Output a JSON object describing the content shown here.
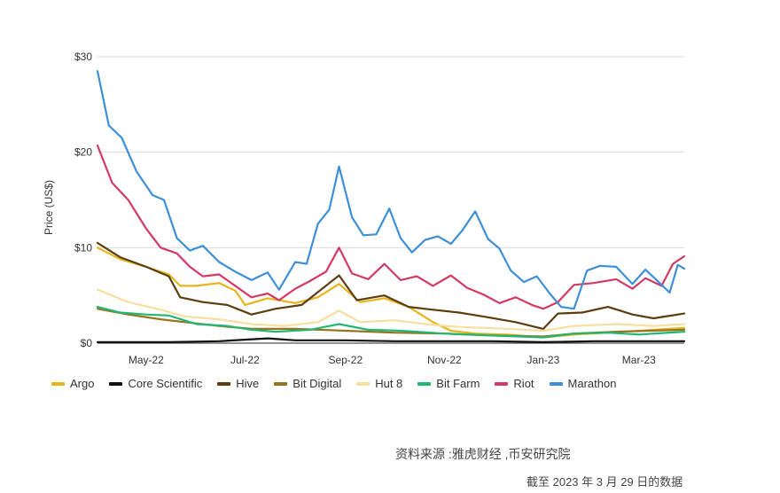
{
  "chart_data": {
    "type": "line",
    "title": "",
    "ylabel": "Price (US$)",
    "ylim": [
      0,
      30
    ],
    "yticks": [
      0,
      10,
      20,
      30
    ],
    "ytick_labels": [
      "$0",
      "$10",
      "$20",
      "$30"
    ],
    "xlim": [
      "2022-04-01",
      "2023-03-29"
    ],
    "xtick_labels": [
      "May-22",
      "Jul-22",
      "Sep-22",
      "Nov-22",
      "Jan-23",
      "Mar-23"
    ],
    "xtick_dates": [
      "2022-05-01",
      "2022-07-01",
      "2022-09-01",
      "2022-11-01",
      "2023-01-01",
      "2023-03-01"
    ],
    "grid": "horizontal",
    "legend_position": "bottom",
    "series": [
      {
        "name": "Argo",
        "color": "#e8b41c",
        "points": [
          [
            "2022-04-01",
            10.0
          ],
          [
            "2022-04-15",
            8.8
          ],
          [
            "2022-05-01",
            8.0
          ],
          [
            "2022-05-15",
            7.2
          ],
          [
            "2022-05-22",
            6.0
          ],
          [
            "2022-06-01",
            6.0
          ],
          [
            "2022-06-15",
            6.3
          ],
          [
            "2022-06-25",
            5.5
          ],
          [
            "2022-07-01",
            4.0
          ],
          [
            "2022-07-15",
            4.7
          ],
          [
            "2022-08-01",
            4.2
          ],
          [
            "2022-08-15",
            4.8
          ],
          [
            "2022-08-28",
            6.2
          ],
          [
            "2022-09-10",
            4.3
          ],
          [
            "2022-09-25",
            4.7
          ],
          [
            "2022-10-10",
            3.8
          ],
          [
            "2022-10-25",
            2.2
          ],
          [
            "2022-11-05",
            1.3
          ],
          [
            "2022-11-20",
            1.0
          ],
          [
            "2022-12-10",
            0.9
          ],
          [
            "2023-01-01",
            0.6
          ],
          [
            "2023-01-20",
            0.9
          ],
          [
            "2023-02-10",
            1.1
          ],
          [
            "2023-03-01",
            1.3
          ],
          [
            "2023-03-29",
            1.6
          ]
        ]
      },
      {
        "name": "Core Scientific",
        "color": "#111111",
        "points": [
          [
            "2022-04-01",
            0.1
          ],
          [
            "2022-05-15",
            0.1
          ],
          [
            "2022-06-15",
            0.2
          ],
          [
            "2022-07-15",
            0.5
          ],
          [
            "2022-08-01",
            0.3
          ],
          [
            "2022-09-01",
            0.3
          ],
          [
            "2022-10-01",
            0.2
          ],
          [
            "2022-11-01",
            0.2
          ],
          [
            "2022-12-01",
            0.2
          ],
          [
            "2023-01-01",
            0.1
          ],
          [
            "2023-02-01",
            0.2
          ],
          [
            "2023-03-29",
            0.2
          ]
        ]
      },
      {
        "name": "Hive",
        "color": "#5b3e10",
        "points": [
          [
            "2022-04-01",
            10.5
          ],
          [
            "2022-04-15",
            9.0
          ],
          [
            "2022-05-01",
            8.0
          ],
          [
            "2022-05-15",
            7.0
          ],
          [
            "2022-05-22",
            4.8
          ],
          [
            "2022-06-05",
            4.3
          ],
          [
            "2022-06-20",
            4.0
          ],
          [
            "2022-07-05",
            3.0
          ],
          [
            "2022-07-20",
            3.6
          ],
          [
            "2022-08-05",
            4.0
          ],
          [
            "2022-08-28",
            7.1
          ],
          [
            "2022-09-08",
            4.5
          ],
          [
            "2022-09-25",
            5.0
          ],
          [
            "2022-10-10",
            3.8
          ],
          [
            "2022-10-25",
            3.5
          ],
          [
            "2022-11-10",
            3.2
          ],
          [
            "2022-11-25",
            2.8
          ],
          [
            "2022-12-15",
            2.2
          ],
          [
            "2023-01-01",
            1.5
          ],
          [
            "2023-01-10",
            3.1
          ],
          [
            "2023-01-25",
            3.2
          ],
          [
            "2023-02-10",
            3.8
          ],
          [
            "2023-02-25",
            3.0
          ],
          [
            "2023-03-10",
            2.6
          ],
          [
            "2023-03-29",
            3.1
          ]
        ]
      },
      {
        "name": "Bit Digital",
        "color": "#94741e",
        "points": [
          [
            "2022-04-01",
            3.6
          ],
          [
            "2022-04-20",
            3.0
          ],
          [
            "2022-05-10",
            2.5
          ],
          [
            "2022-05-25",
            2.2
          ],
          [
            "2022-06-15",
            1.8
          ],
          [
            "2022-07-05",
            1.5
          ],
          [
            "2022-08-01",
            1.5
          ],
          [
            "2022-09-01",
            1.3
          ],
          [
            "2022-10-01",
            1.1
          ],
          [
            "2022-11-01",
            1.0
          ],
          [
            "2022-12-01",
            0.8
          ],
          [
            "2023-01-01",
            0.7
          ],
          [
            "2023-01-20",
            1.0
          ],
          [
            "2023-02-15",
            1.2
          ],
          [
            "2023-03-29",
            1.4
          ]
        ]
      },
      {
        "name": "Hut 8",
        "color": "#f6dfa0",
        "points": [
          [
            "2022-04-01",
            5.6
          ],
          [
            "2022-04-20",
            4.3
          ],
          [
            "2022-05-10",
            3.5
          ],
          [
            "2022-05-25",
            2.8
          ],
          [
            "2022-06-15",
            2.5
          ],
          [
            "2022-07-05",
            2.0
          ],
          [
            "2022-07-25",
            1.8
          ],
          [
            "2022-08-15",
            2.2
          ],
          [
            "2022-08-28",
            3.4
          ],
          [
            "2022-09-10",
            2.2
          ],
          [
            "2022-10-01",
            2.4
          ],
          [
            "2022-10-20",
            2.0
          ],
          [
            "2022-11-10",
            1.7
          ],
          [
            "2022-12-10",
            1.5
          ],
          [
            "2023-01-01",
            1.3
          ],
          [
            "2023-01-20",
            1.8
          ],
          [
            "2023-02-15",
            2.0
          ],
          [
            "2023-03-10",
            1.8
          ],
          [
            "2023-03-29",
            2.0
          ]
        ]
      },
      {
        "name": "Bit Farm",
        "color": "#22b573",
        "points": [
          [
            "2022-04-01",
            3.8
          ],
          [
            "2022-04-15",
            3.2
          ],
          [
            "2022-05-01",
            3.0
          ],
          [
            "2022-05-15",
            2.9
          ],
          [
            "2022-06-01",
            2.0
          ],
          [
            "2022-06-20",
            1.8
          ],
          [
            "2022-07-05",
            1.4
          ],
          [
            "2022-07-20",
            1.2
          ],
          [
            "2022-08-10",
            1.4
          ],
          [
            "2022-08-28",
            2.0
          ],
          [
            "2022-09-15",
            1.4
          ],
          [
            "2022-10-05",
            1.3
          ],
          [
            "2022-11-01",
            1.0
          ],
          [
            "2022-12-01",
            0.8
          ],
          [
            "2023-01-01",
            0.6
          ],
          [
            "2023-01-20",
            1.0
          ],
          [
            "2023-02-10",
            1.1
          ],
          [
            "2023-03-01",
            0.9
          ],
          [
            "2023-03-29",
            1.2
          ]
        ]
      },
      {
        "name": "Riot",
        "color": "#d33a63",
        "points": [
          [
            "2022-04-01",
            20.7
          ],
          [
            "2022-04-10",
            16.8
          ],
          [
            "2022-04-20",
            15.0
          ],
          [
            "2022-05-01",
            12.0
          ],
          [
            "2022-05-10",
            10.0
          ],
          [
            "2022-05-20",
            9.4
          ],
          [
            "2022-05-28",
            8.0
          ],
          [
            "2022-06-05",
            7.0
          ],
          [
            "2022-06-15",
            7.2
          ],
          [
            "2022-06-25",
            6.0
          ],
          [
            "2022-07-05",
            4.8
          ],
          [
            "2022-07-15",
            5.2
          ],
          [
            "2022-07-22",
            4.5
          ],
          [
            "2022-08-01",
            5.7
          ],
          [
            "2022-08-10",
            6.5
          ],
          [
            "2022-08-20",
            7.5
          ],
          [
            "2022-08-28",
            10.0
          ],
          [
            "2022-09-05",
            7.3
          ],
          [
            "2022-09-15",
            6.7
          ],
          [
            "2022-09-25",
            8.3
          ],
          [
            "2022-10-05",
            6.6
          ],
          [
            "2022-10-15",
            7.0
          ],
          [
            "2022-10-25",
            6.0
          ],
          [
            "2022-11-05",
            7.1
          ],
          [
            "2022-11-15",
            5.8
          ],
          [
            "2022-11-25",
            5.1
          ],
          [
            "2022-12-05",
            4.2
          ],
          [
            "2022-12-15",
            4.8
          ],
          [
            "2022-12-25",
            4.0
          ],
          [
            "2023-01-01",
            3.6
          ],
          [
            "2023-01-10",
            4.3
          ],
          [
            "2023-01-20",
            6.1
          ],
          [
            "2023-02-01",
            6.3
          ],
          [
            "2023-02-15",
            6.7
          ],
          [
            "2023-02-25",
            5.7
          ],
          [
            "2023-03-05",
            6.8
          ],
          [
            "2023-03-15",
            6.0
          ],
          [
            "2023-03-22",
            8.3
          ],
          [
            "2023-03-29",
            9.1
          ]
        ]
      },
      {
        "name": "Marathon",
        "color": "#3d8fd9",
        "points": [
          [
            "2022-04-01",
            28.5
          ],
          [
            "2022-04-08",
            22.8
          ],
          [
            "2022-04-16",
            21.5
          ],
          [
            "2022-04-25",
            18.0
          ],
          [
            "2022-05-05",
            15.5
          ],
          [
            "2022-05-12",
            15.0
          ],
          [
            "2022-05-20",
            11.0
          ],
          [
            "2022-05-28",
            9.7
          ],
          [
            "2022-06-05",
            10.2
          ],
          [
            "2022-06-15",
            8.5
          ],
          [
            "2022-06-25",
            7.5
          ],
          [
            "2022-07-05",
            6.6
          ],
          [
            "2022-07-15",
            7.4
          ],
          [
            "2022-07-22",
            5.6
          ],
          [
            "2022-08-01",
            8.5
          ],
          [
            "2022-08-08",
            8.3
          ],
          [
            "2022-08-15",
            12.5
          ],
          [
            "2022-08-22",
            14.0
          ],
          [
            "2022-08-28",
            18.5
          ],
          [
            "2022-09-05",
            13.2
          ],
          [
            "2022-09-12",
            11.3
          ],
          [
            "2022-09-20",
            11.4
          ],
          [
            "2022-09-28",
            14.1
          ],
          [
            "2022-10-05",
            11.0
          ],
          [
            "2022-10-12",
            9.5
          ],
          [
            "2022-10-20",
            10.8
          ],
          [
            "2022-10-28",
            11.2
          ],
          [
            "2022-11-05",
            10.4
          ],
          [
            "2022-11-12",
            11.8
          ],
          [
            "2022-11-20",
            13.8
          ],
          [
            "2022-11-28",
            10.9
          ],
          [
            "2022-12-05",
            9.9
          ],
          [
            "2022-12-12",
            7.6
          ],
          [
            "2022-12-20",
            6.4
          ],
          [
            "2022-12-28",
            7.0
          ],
          [
            "2023-01-05",
            5.2
          ],
          [
            "2023-01-12",
            3.8
          ],
          [
            "2023-01-20",
            3.6
          ],
          [
            "2023-01-28",
            7.6
          ],
          [
            "2023-02-05",
            8.1
          ],
          [
            "2023-02-15",
            8.0
          ],
          [
            "2023-02-25",
            6.2
          ],
          [
            "2023-03-05",
            7.7
          ],
          [
            "2023-03-12",
            6.6
          ],
          [
            "2023-03-20",
            5.3
          ],
          [
            "2023-03-25",
            8.2
          ],
          [
            "2023-03-29",
            7.8
          ]
        ]
      }
    ]
  },
  "footer": {
    "source": "资料来源 :雅虎财经 ,币安研究院",
    "date_note": "截至 2023 年 3 月 29 日的数据"
  }
}
